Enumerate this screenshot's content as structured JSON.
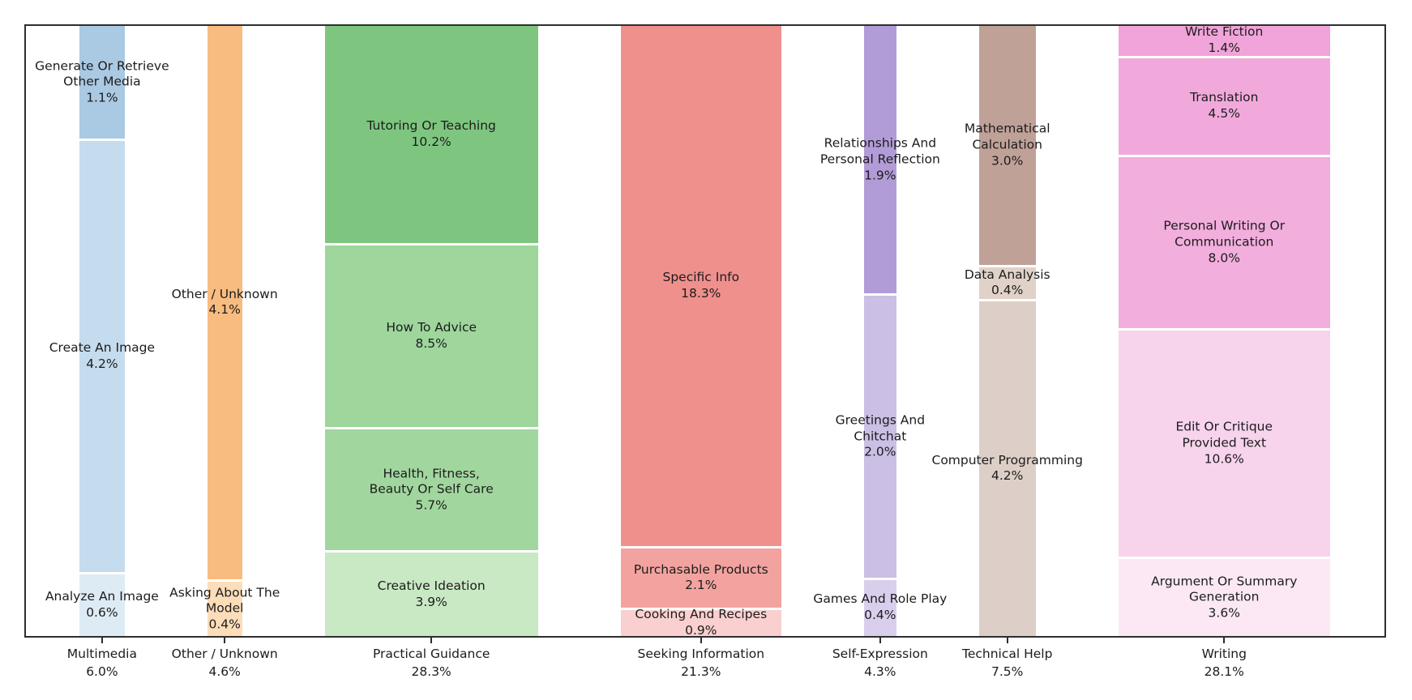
{
  "chart_data": {
    "type": "mosaic",
    "orientation": "vertical-columns",
    "grid": false,
    "legend": false,
    "columns": [
      {
        "label": "Multimedia",
        "total_pct": "6.0%",
        "total": 6.0,
        "segments": [
          {
            "lines": [
              "Generate Or Retrieve",
              "Other Media"
            ],
            "pct": "1.1%",
            "value": 1.1,
            "color": "#aac9e2"
          },
          {
            "lines": [
              "Create An Image"
            ],
            "pct": "4.2%",
            "value": 4.2,
            "color": "#c5dcee"
          },
          {
            "lines": [
              "Analyze An Image"
            ],
            "pct": "0.6%",
            "value": 0.6,
            "color": "#ddebf5"
          }
        ]
      },
      {
        "label": "Other / Unknown",
        "total_pct": "4.6%",
        "total": 4.6,
        "segments": [
          {
            "lines": [
              "Other / Unknown"
            ],
            "pct": "4.1%",
            "value": 4.1,
            "color": "#f9bc80"
          },
          {
            "lines": [
              "Asking About The",
              "Model"
            ],
            "pct": "0.4%",
            "value": 0.4,
            "color": "#fcddb9"
          }
        ]
      },
      {
        "label": "Practical Guidance",
        "total_pct": "28.3%",
        "total": 28.3,
        "segments": [
          {
            "lines": [
              "Tutoring Or Teaching"
            ],
            "pct": "10.2%",
            "value": 10.2,
            "color": "#7ec67f"
          },
          {
            "lines": [
              "How To Advice"
            ],
            "pct": "8.5%",
            "value": 8.5,
            "color": "#9ed69c"
          },
          {
            "lines": [
              "Health, Fitness,",
              "Beauty Or Self Care"
            ],
            "pct": "5.7%",
            "value": 5.7,
            "color": "#a1d79e"
          },
          {
            "lines": [
              "Creative Ideation"
            ],
            "pct": "3.9%",
            "value": 3.9,
            "color": "#c9e8c4"
          }
        ]
      },
      {
        "label": "Seeking Information",
        "total_pct": "21.3%",
        "total": 21.3,
        "segments": [
          {
            "lines": [
              "Specific Info"
            ],
            "pct": "18.3%",
            "value": 18.3,
            "color": "#ef908c"
          },
          {
            "lines": [
              "Purchasable Products"
            ],
            "pct": "2.1%",
            "value": 2.1,
            "color": "#f2a39f"
          },
          {
            "lines": [
              "Cooking And Recipes"
            ],
            "pct": "0.9%",
            "value": 0.9,
            "color": "#f9d0cf"
          }
        ]
      },
      {
        "label": "Self-Expression",
        "total_pct": "4.3%",
        "total": 4.3,
        "segments": [
          {
            "lines": [
              "Relationships And",
              "Personal Reflection"
            ],
            "pct": "1.9%",
            "value": 1.9,
            "color": "#b29cd7"
          },
          {
            "lines": [
              "Greetings And",
              "Chitchat"
            ],
            "pct": "2.0%",
            "value": 2.0,
            "color": "#cbbfe5"
          },
          {
            "lines": [
              "Games And Role Play"
            ],
            "pct": "0.4%",
            "value": 0.4,
            "color": "#d9cfed"
          }
        ]
      },
      {
        "label": "Technical Help",
        "total_pct": "7.5%",
        "total": 7.5,
        "segments": [
          {
            "lines": [
              "Mathematical",
              "Calculation"
            ],
            "pct": "3.0%",
            "value": 3.0,
            "color": "#bfa198"
          },
          {
            "lines": [
              "Data Analysis"
            ],
            "pct": "0.4%",
            "value": 0.4,
            "color": "#e0d2c9"
          },
          {
            "lines": [
              "Computer Programming"
            ],
            "pct": "4.2%",
            "value": 4.2,
            "color": "#ddcfc7"
          }
        ]
      },
      {
        "label": "Writing",
        "total_pct": "28.1%",
        "total": 28.1,
        "segments": [
          {
            "lines": [
              "Write Fiction"
            ],
            "pct": "1.4%",
            "value": 1.4,
            "color": "#f0a4d9"
          },
          {
            "lines": [
              "Translation"
            ],
            "pct": "4.5%",
            "value": 4.5,
            "color": "#f1a9db"
          },
          {
            "lines": [
              "Personal Writing Or",
              "Communication"
            ],
            "pct": "8.0%",
            "value": 8.0,
            "color": "#f2aedd"
          },
          {
            "lines": [
              "Edit Or Critique",
              "Provided Text"
            ],
            "pct": "10.6%",
            "value": 10.6,
            "color": "#f7d3ec"
          },
          {
            "lines": [
              "Argument Or Summary",
              "Generation"
            ],
            "pct": "3.6%",
            "value": 3.6,
            "color": "#fce8f5"
          }
        ]
      }
    ],
    "frame_color": "#2e2e2e",
    "background_color": "#ffffff"
  }
}
